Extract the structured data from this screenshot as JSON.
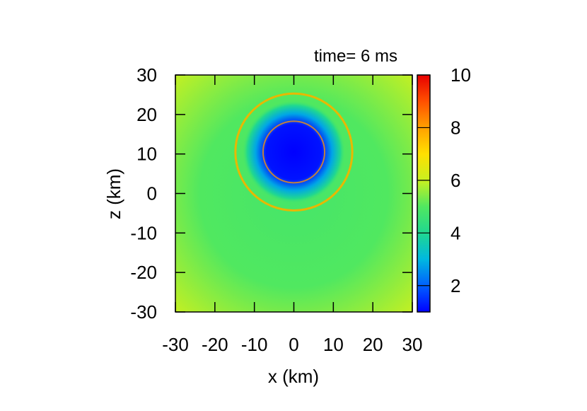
{
  "chart_data": {
    "type": "heatmap",
    "title": "time= 6 ms",
    "xlabel": "x (km)",
    "ylabel": "z (km)",
    "xlim": [
      -30,
      30
    ],
    "ylim": [
      -30,
      30
    ],
    "xticks": [
      "-30",
      "-20",
      "-10",
      "0",
      "10",
      "20",
      "30"
    ],
    "yticks": [
      "30",
      "20",
      "10",
      "0",
      "-10",
      "-20",
      "-30"
    ],
    "colorbar": {
      "range": [
        1,
        10
      ],
      "ticks": [
        "10",
        "8",
        "6",
        "4",
        "2"
      ],
      "levels": [
        {
          "value": 1.0,
          "color": "#0000ff"
        },
        {
          "value": 2.0,
          "color": "#0060ff"
        },
        {
          "value": 3.0,
          "color": "#00b8e0"
        },
        {
          "value": 4.0,
          "color": "#20d890"
        },
        {
          "value": 5.0,
          "color": "#50e860"
        },
        {
          "value": 6.0,
          "color": "#c8f020"
        },
        {
          "value": 7.0,
          "color": "#ffe000"
        },
        {
          "value": 8.0,
          "color": "#ffa000"
        },
        {
          "value": 9.0,
          "color": "#ff5000"
        },
        {
          "value": 10.0,
          "color": "#e80000"
        }
      ]
    },
    "field": {
      "background_value": 4.8,
      "corner_value": 6.0,
      "core_center": [
        0,
        10.5
      ],
      "core_radius_km": 7.0,
      "core_value": 1.0,
      "halo_radius_km": 13.0,
      "halo_value": 2.8
    },
    "contours": [
      {
        "center": [
          0,
          10.5
        ],
        "radius_km": 14.8,
        "color": "#e8b800"
      },
      {
        "center": [
          0,
          10.5
        ],
        "radius_km": 7.8,
        "color": "#c08040"
      }
    ]
  }
}
